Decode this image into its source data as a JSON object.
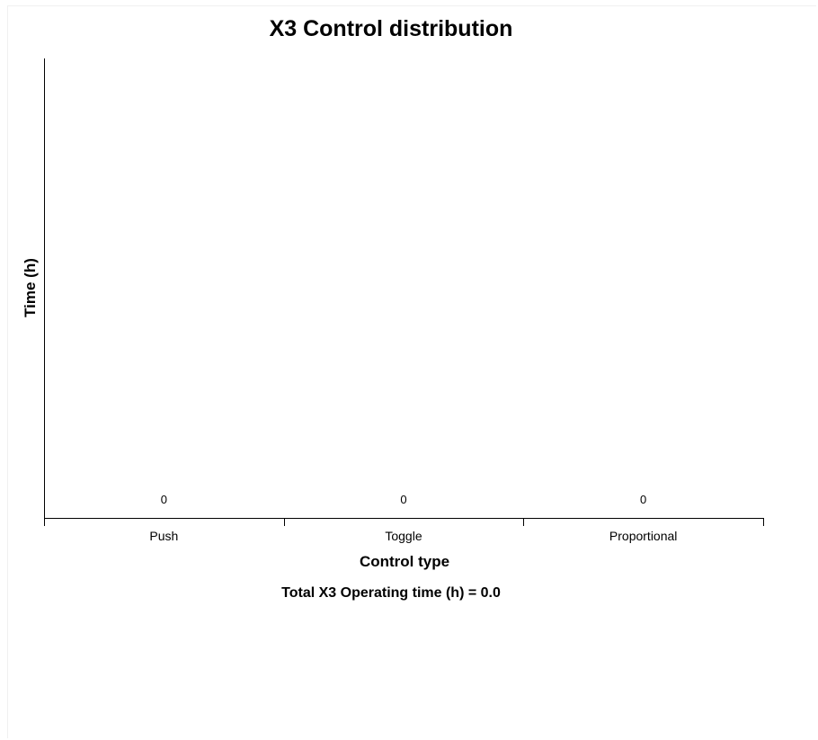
{
  "chart_data": {
    "type": "bar",
    "title": "X3 Control distribution",
    "xlabel": "Control type",
    "ylabel": "Time (h)",
    "categories": [
      "Push",
      "Toggle",
      "Proportional"
    ],
    "values": [
      0,
      0,
      0
    ],
    "data_labels": [
      "0",
      "0",
      "0"
    ],
    "grid": false,
    "legend": "none",
    "bar_color": "#4472c4"
  },
  "footer": {
    "total_text": "Total X3 Operating time (h) = 0.0"
  }
}
